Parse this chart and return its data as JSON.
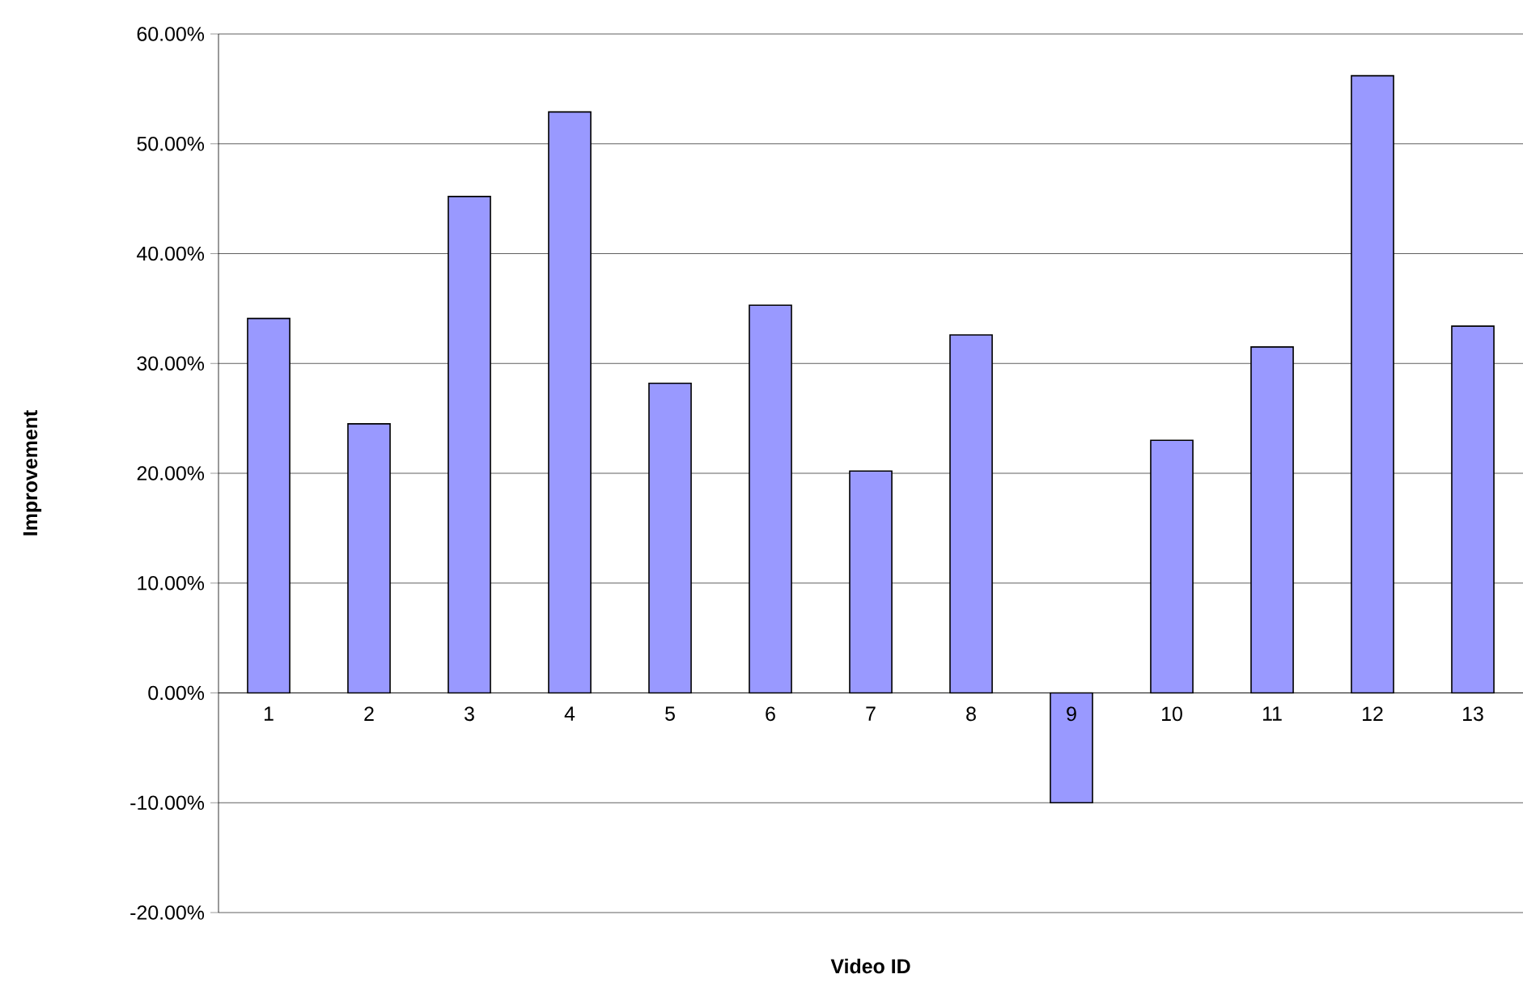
{
  "chart_data": {
    "type": "bar",
    "xlabel": "Video ID",
    "ylabel": "Improvement",
    "categories": [
      "1",
      "2",
      "3",
      "4",
      "5",
      "6",
      "7",
      "8",
      "9",
      "10",
      "11",
      "12",
      "13"
    ],
    "values": [
      34.1,
      24.5,
      45.2,
      52.9,
      28.2,
      35.3,
      20.2,
      32.6,
      -10.0,
      23.0,
      31.5,
      56.2,
      33.4
    ],
    "color": "#9999ff",
    "ylim": [
      -20,
      60
    ],
    "yticks": [
      {
        "value": -20,
        "label": "-20.00%"
      },
      {
        "value": -10,
        "label": "-10.00%"
      },
      {
        "value": 0,
        "label": "0.00%"
      },
      {
        "value": 10,
        "label": "10.00%"
      },
      {
        "value": 20,
        "label": "20.00%"
      },
      {
        "value": 30,
        "label": "30.00%"
      },
      {
        "value": 40,
        "label": "40.00%"
      },
      {
        "value": 50,
        "label": "50.00%"
      },
      {
        "value": 60,
        "label": "60.00%"
      }
    ],
    "grid": "y"
  }
}
